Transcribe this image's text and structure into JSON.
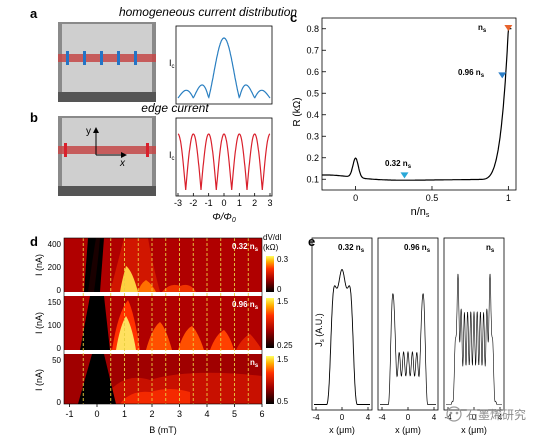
{
  "panels": {
    "a": {
      "letter": "a",
      "caption": "homogeneous current distribution",
      "ylabel": "I",
      "ylabel_sub": "c"
    },
    "b": {
      "letter": "b",
      "caption": "edge current",
      "ylabel": "I",
      "ylabel_sub": "c",
      "axis_y": "y",
      "axis_x": "x",
      "xlabel": "Φ/Φ",
      "xlabel_sub": "0",
      "xticks": [
        "-3",
        "-2",
        "-1",
        "0",
        "1",
        "2",
        "3"
      ]
    },
    "c": {
      "letter": "c",
      "ylabel": "R (kΩ)",
      "xlabel": "n/n",
      "xlabel_sub": "s",
      "yticks": [
        "0.1",
        "0.2",
        "0.3",
        "0.4",
        "0.5",
        "0.6",
        "0.7",
        "0.8"
      ],
      "xticks": [
        "0",
        "0.5",
        "1"
      ],
      "ann_032": "0.32 n",
      "ann_032_sub": "s",
      "ann_096": "0.96 n",
      "ann_096_sub": "s",
      "ann_ns": "n",
      "ann_ns_sub": "s"
    },
    "d": {
      "letter": "d",
      "xlabel": "B (mT)",
      "xticks": [
        "-1",
        "0",
        "1",
        "2",
        "3",
        "4",
        "5",
        "6"
      ],
      "rows": [
        {
          "ylabel": "I (nA)",
          "yticks": [
            "400",
            "200",
            "0"
          ],
          "label": "0.32 n",
          "label_sub": "s",
          "cbar_title": "dV/dI",
          "cbar_unit": "(kΩ)",
          "cbar_top": "0.3",
          "cbar_bottom": "0"
        },
        {
          "ylabel": "I (nA)",
          "yticks": [
            "150",
            "100",
            "0"
          ],
          "label": "0.96 n",
          "label_sub": "s",
          "cbar_top": "1.5",
          "cbar_bottom": "0.25"
        },
        {
          "ylabel": "I (nA)",
          "yticks": [
            "50",
            "0"
          ],
          "label": "n",
          "label_sub": "s",
          "cbar_top": "1.5",
          "cbar_bottom": "0.5"
        }
      ]
    },
    "e": {
      "letter": "e",
      "ylabel": "J",
      "ylabel_sub": "s",
      "ylabel_unit": "(A.U.)",
      "plots": [
        {
          "label": "0.32 n",
          "label_sub": "s",
          "xticks": [
            "-4",
            "0",
            "4"
          ],
          "xlabel": "x (μm)"
        },
        {
          "label": "0.96 n",
          "label_sub": "s",
          "xticks": [
            "-4",
            "0",
            "4"
          ],
          "xlabel": "x (μm)"
        },
        {
          "label": "n",
          "label_sub": "s",
          "xticks": [
            "-4",
            "0",
            "4"
          ],
          "xlabel": "x (μm)"
        }
      ]
    }
  },
  "watermark": "石墨烯研究",
  "chart_data": [
    {
      "type": "line",
      "panel": "a",
      "xlabel": "",
      "ylabel": "I_c",
      "x": [
        -3,
        -2.5,
        -2,
        -1.5,
        -1,
        -0.5,
        0,
        0.5,
        1,
        1.5,
        2,
        2.5,
        3
      ],
      "values": [
        0.06,
        0.14,
        0.02,
        0.22,
        0.03,
        0.64,
        1.0,
        0.64,
        0.03,
        0.22,
        0.02,
        0.14,
        0.06
      ],
      "color": "#2a7fc1"
    },
    {
      "type": "line",
      "panel": "b",
      "xlabel": "Φ/Φ0",
      "ylabel": "I_c",
      "x": [
        -3,
        -2.5,
        -2,
        -1.5,
        -1,
        -0.5,
        0,
        0.5,
        1,
        1.5,
        2,
        2.5,
        3
      ],
      "values": [
        0.02,
        1.0,
        0.02,
        1.0,
        0.02,
        1.0,
        0.02,
        1.0,
        0.02,
        1.0,
        0.02,
        1.0,
        0.02
      ],
      "xlim": [
        -3,
        3
      ],
      "color": "#d9202c"
    },
    {
      "type": "line",
      "panel": "c",
      "xlabel": "n/n_s",
      "ylabel": "R (kΩ)",
      "xlim": [
        -0.22,
        1.05
      ],
      "ylim": [
        0.05,
        0.85
      ],
      "x": [
        -0.22,
        -0.1,
        -0.03,
        0,
        0.03,
        0.1,
        0.3,
        0.5,
        0.7,
        0.85,
        0.92,
        0.96,
        0.99,
        1.0,
        1.02
      ],
      "values": [
        0.11,
        0.13,
        0.17,
        0.2,
        0.15,
        0.11,
        0.095,
        0.1,
        0.115,
        0.16,
        0.3,
        0.55,
        0.73,
        0.79,
        0.62
      ],
      "markers": [
        {
          "x": 0.32,
          "y": 0.095,
          "color": "#29a8d8",
          "label": "0.32 n_s"
        },
        {
          "x": 0.96,
          "y": 0.56,
          "color": "#2d7fc8",
          "label": "0.96 n_s"
        },
        {
          "x": 1.0,
          "y": 0.78,
          "color": "#e8632c",
          "label": "n_s"
        }
      ],
      "color": "#000000"
    },
    {
      "type": "heatmap",
      "panel": "d",
      "xlabel": "B (mT)",
      "xlim": [
        -1.2,
        6
      ],
      "guide_lines_B": [
        -0.5,
        0.5,
        1,
        1.5,
        2,
        2.5,
        3,
        3.5,
        4,
        4.5,
        5,
        5.5
      ],
      "rows": [
        {
          "label": "0.32 n_s",
          "ylabel": "I (nA)",
          "ylim": [
            0,
            480
          ],
          "colorbar": [
            0,
            0.3
          ]
        },
        {
          "label": "0.96 n_s",
          "ylabel": "I (nA)",
          "ylim": [
            0,
            180
          ],
          "colorbar": [
            0.25,
            1.5
          ]
        },
        {
          "label": "n_s",
          "ylabel": "I (nA)",
          "ylim": [
            0,
            70
          ],
          "colorbar": [
            0.5,
            1.5
          ]
        }
      ]
    },
    {
      "type": "line",
      "panel": "e",
      "ylabel": "J_s (A.U.)",
      "xlabel": "x (μm)",
      "xlim": [
        -5,
        5
      ],
      "series": [
        {
          "name": "0.32 n_s",
          "x": [
            -5,
            -4,
            -3,
            -2,
            -1,
            0,
            1,
            2,
            3,
            4,
            5
          ],
          "values": [
            0.02,
            0.03,
            0.08,
            0.4,
            0.88,
            0.95,
            0.88,
            0.4,
            0.08,
            0.03,
            0.02
          ]
        },
        {
          "name": "0.96 n_s",
          "x": [
            -5,
            -4,
            -3,
            -2,
            -1,
            0,
            1,
            2,
            3,
            4,
            5
          ],
          "values": [
            0.02,
            0.3,
            0.85,
            0.35,
            0.2,
            0.25,
            0.2,
            0.35,
            0.85,
            0.3,
            0.02
          ]
        },
        {
          "name": "n_s",
          "x": [
            -5,
            -4,
            -3,
            -2,
            -1,
            0,
            1,
            2,
            3,
            4,
            5
          ],
          "values": [
            0.02,
            0.2,
            0.9,
            0.5,
            0.6,
            0.55,
            0.6,
            0.5,
            0.9,
            0.2,
            0.02
          ]
        }
      ]
    }
  ]
}
